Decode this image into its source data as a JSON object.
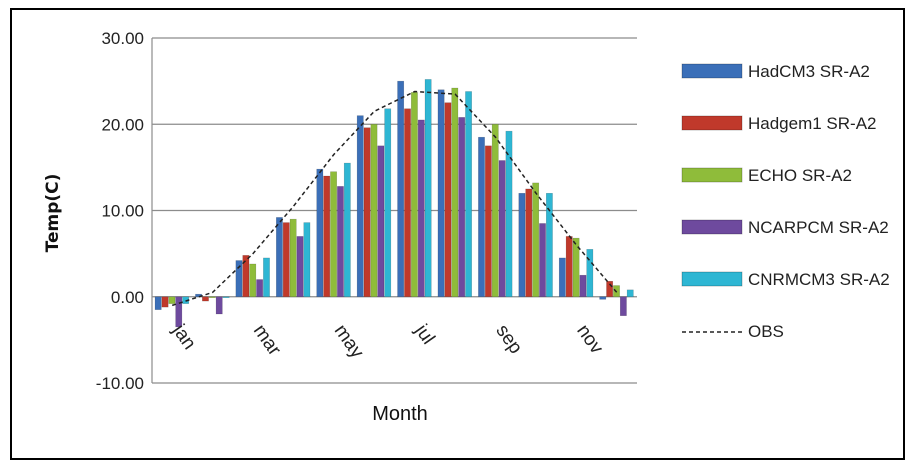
{
  "chart_data": {
    "type": "bar",
    "xlabel": "Month",
    "ylabel": "Temp(C)",
    "ylim": [
      -10,
      30
    ],
    "yticks": [
      "30.00",
      "20.00",
      "10.00",
      "0.00",
      "-10.00"
    ],
    "categories": [
      "jan",
      "feb",
      "mar",
      "apr",
      "may",
      "jun",
      "jul",
      "aug",
      "sep",
      "oct",
      "nov",
      "dec"
    ],
    "x_tick_labels": [
      "jan",
      "mar",
      "may",
      "jul",
      "sep",
      "nov"
    ],
    "grid": true,
    "legend_position": "right",
    "series": [
      {
        "name": "HadCM3 SR-A2",
        "color": "#3b6fb8",
        "values": [
          -1.5,
          0.3,
          4.2,
          9.2,
          14.8,
          21.0,
          25.0,
          24.0,
          18.5,
          12.0,
          4.5,
          -0.3
        ]
      },
      {
        "name": "Hadgem1 SR-A2",
        "color": "#c0392b",
        "values": [
          -1.2,
          -0.5,
          4.8,
          8.6,
          14.0,
          19.6,
          21.8,
          22.5,
          17.5,
          12.5,
          7.0,
          1.8
        ]
      },
      {
        "name": "ECHO SR-A2",
        "color": "#8fbc3a",
        "values": [
          -0.8,
          0.0,
          3.8,
          9.0,
          14.5,
          20.0,
          23.7,
          24.2,
          20.0,
          13.2,
          6.8,
          1.3
        ]
      },
      {
        "name": "NCARPCM SR-A2",
        "color": "#6e4a9e",
        "values": [
          -3.5,
          -2.0,
          2.0,
          7.0,
          12.8,
          17.5,
          20.5,
          20.8,
          15.8,
          8.5,
          2.5,
          -2.2
        ]
      },
      {
        "name": "CNRMCM3 SR-A2",
        "color": "#2eb6d3",
        "values": [
          -0.8,
          0.0,
          4.5,
          8.6,
          15.5,
          21.8,
          25.2,
          23.8,
          19.2,
          12.0,
          5.5,
          0.8
        ]
      }
    ],
    "lines": [
      {
        "name": "OBS",
        "style": "dashed",
        "color": "#222222",
        "values": [
          -1.0,
          0.5,
          5.0,
          10.5,
          16.5,
          21.5,
          23.8,
          23.5,
          18.5,
          12.0,
          6.0,
          0.5
        ]
      }
    ]
  }
}
